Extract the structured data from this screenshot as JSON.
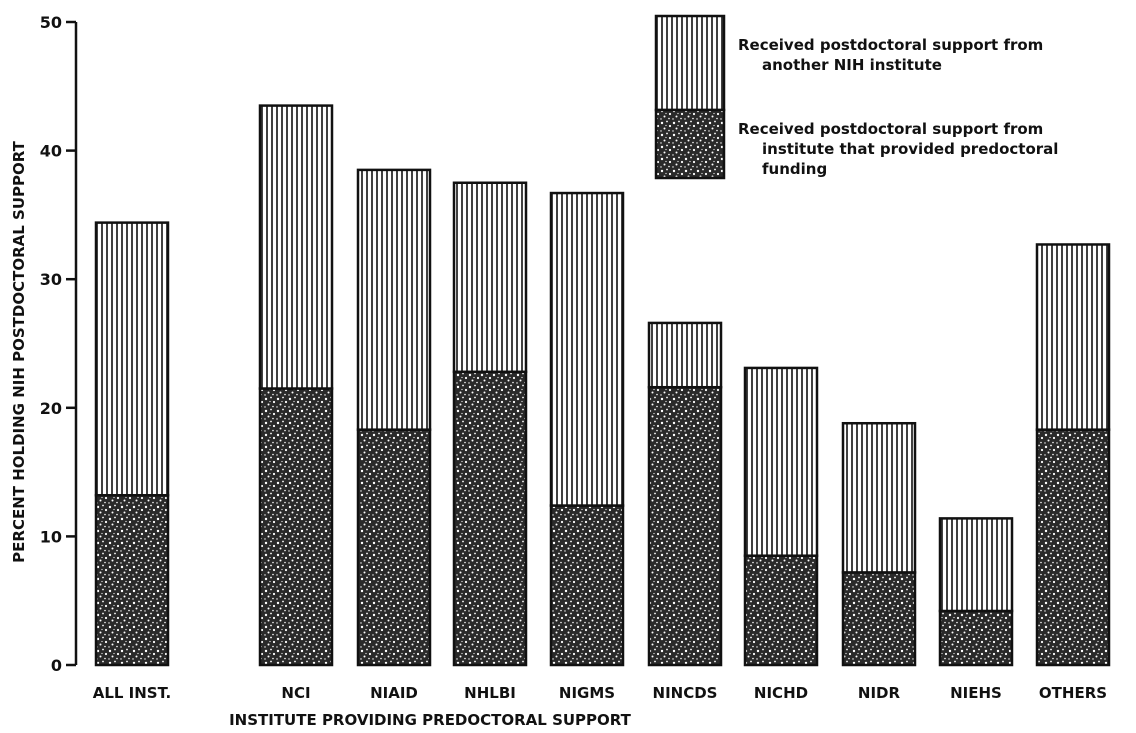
{
  "chart_data": {
    "type": "bar",
    "stacked": true,
    "xlabel": "INSTITUTE PROVIDING PREDOCTORAL SUPPORT",
    "ylabel": "PERCENT HOLDING NIH POSTDOCTORAL SUPPORT",
    "ylim": [
      0,
      50
    ],
    "yticks": [
      "0",
      "10",
      "20",
      "30",
      "40",
      "50"
    ],
    "grid": false,
    "legend_position": "top-right",
    "categories": [
      "ALL INST.",
      "NCI",
      "NIAID",
      "NHLBI",
      "NIGMS",
      "NINCDS",
      "NICHD",
      "NIDR",
      "NIEHS",
      "OTHERS"
    ],
    "series": [
      {
        "name": "Received postdoctoral support from institute that provided predoctoral funding",
        "name_lines": [
          "Received postdoctoral support from",
          "institute that provided predoctoral",
          "funding"
        ],
        "pattern": "stipple",
        "values": [
          13.2,
          21.5,
          18.3,
          22.8,
          12.4,
          21.6,
          8.5,
          7.2,
          4.2,
          18.3
        ]
      },
      {
        "name": "Received postdoctoral support from another NIH institute",
        "name_lines": [
          "Received postdoctoral support from",
          "another NIH institute"
        ],
        "pattern": "vertical-hatch",
        "values": [
          21.2,
          22.0,
          20.2,
          14.7,
          24.3,
          5.0,
          14.6,
          11.6,
          7.2,
          14.4
        ]
      }
    ]
  }
}
